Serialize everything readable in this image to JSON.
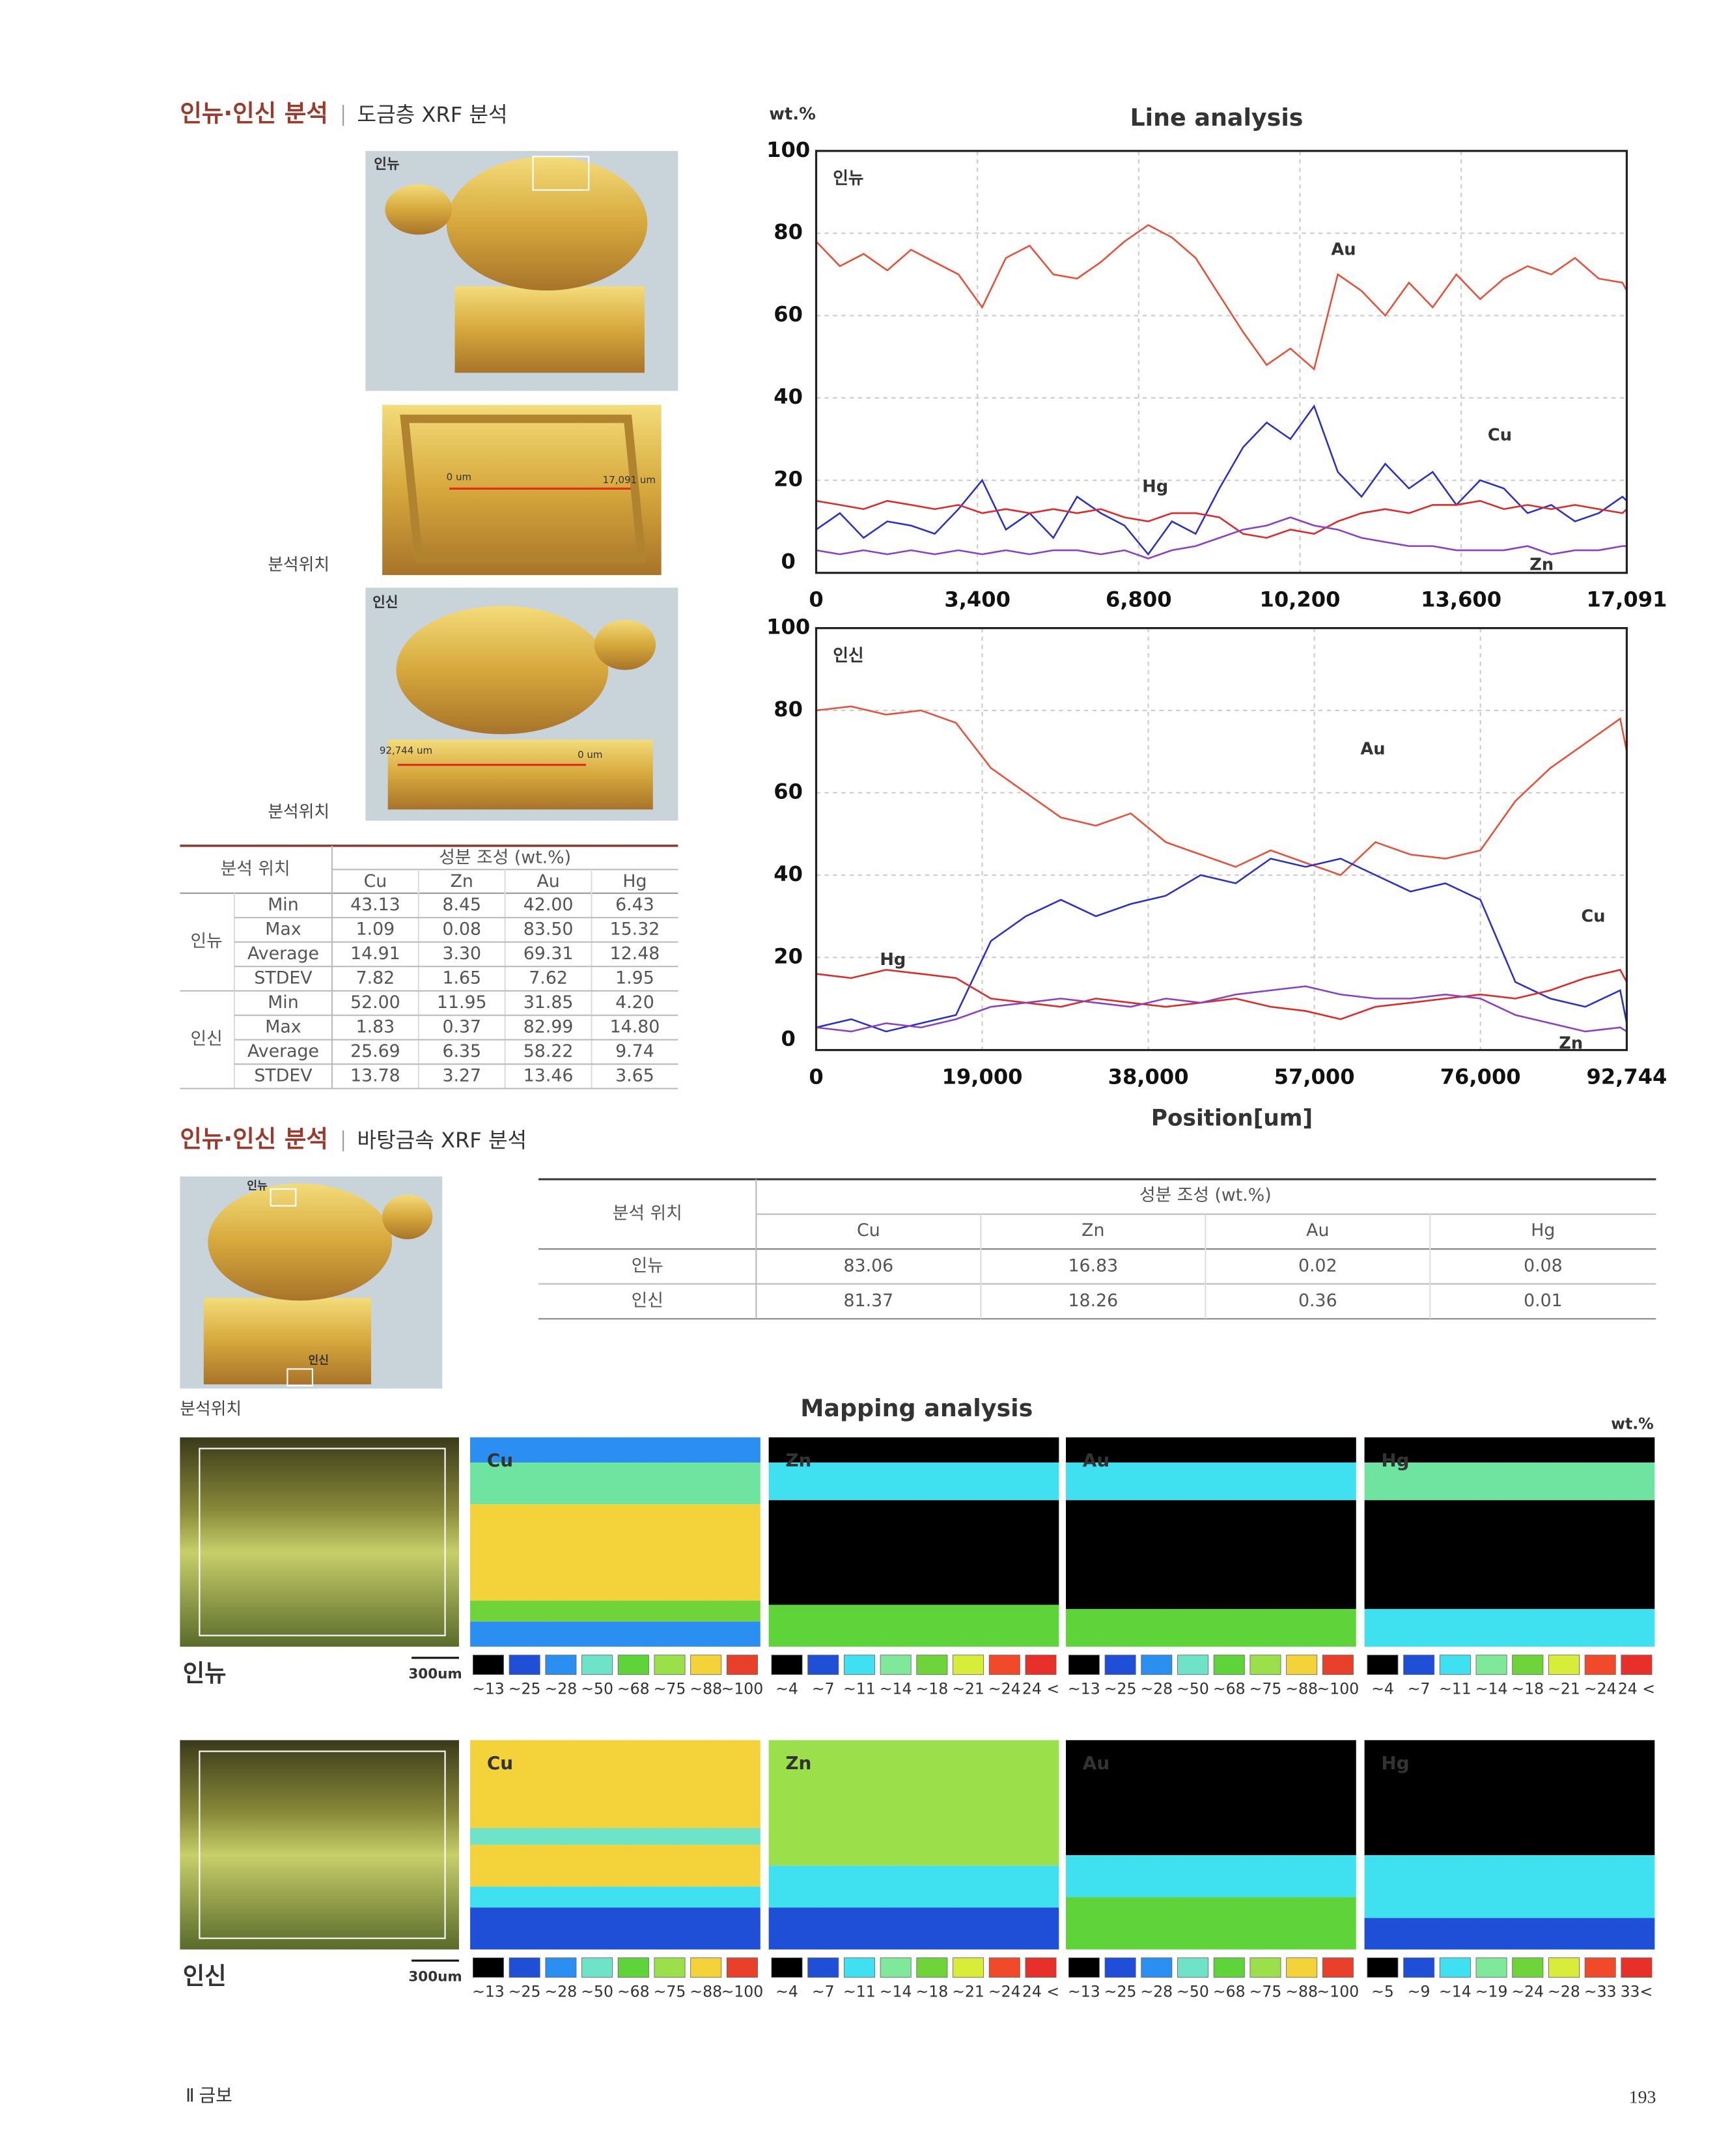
{
  "section1": {
    "title": "인뉴·인신 분석",
    "subtitle": "도금층 XRF 분석"
  },
  "photos": {
    "labels": [
      "인뉴",
      "인신"
    ],
    "scale_1": [
      "0 um",
      "17,091 um"
    ],
    "scale_2": [
      "92,744 um",
      "0 um"
    ],
    "captions": [
      "분석위치",
      "분석위치"
    ]
  },
  "chart_data": [
    {
      "type": "line",
      "title": "Line analysis",
      "y_label": "wt.%",
      "subtitle": "인뉴",
      "x": [
        0,
        500,
        1000,
        1500,
        2000,
        2500,
        3000,
        3500,
        4000,
        4500,
        5000,
        5500,
        6000,
        6500,
        7000,
        7500,
        8000,
        8500,
        9000,
        9500,
        10000,
        10500,
        11000,
        11500,
        12000,
        12500,
        13000,
        13500,
        14000,
        14500,
        15000,
        15500,
        16000,
        16500,
        17000,
        17091
      ],
      "xlim": [
        0,
        17091
      ],
      "xticks": [
        0,
        {
          "value": 3400,
          "label": "3,400"
        },
        {
          "value": 6800,
          "label": "6,800"
        },
        {
          "value": 10200,
          "label": "10,200"
        },
        {
          "value": 13600,
          "label": "13,600"
        },
        {
          "value": 17091,
          "label": "17,091"
        }
      ],
      "ylim": [
        -2.5,
        100
      ],
      "yticks": [
        0,
        20,
        40,
        60,
        80,
        100
      ],
      "grid": true,
      "series": [
        {
          "name": "Au",
          "color": "#e8503a",
          "values": [
            78,
            72,
            75,
            71,
            76,
            73,
            70,
            62,
            74,
            77,
            70,
            69,
            73,
            78,
            82,
            79,
            74,
            65,
            56,
            48,
            52,
            47,
            70,
            66,
            60,
            68,
            62,
            70,
            64,
            69,
            72,
            70,
            74,
            69,
            68,
            66
          ]
        },
        {
          "name": "Cu",
          "color": "#2b30c8",
          "values": [
            8,
            12,
            6,
            10,
            9,
            7,
            13,
            20,
            8,
            12,
            6,
            16,
            12,
            9,
            2,
            10,
            7,
            18,
            28,
            34,
            30,
            38,
            22,
            16,
            24,
            18,
            22,
            14,
            20,
            18,
            12,
            14,
            10,
            12,
            16,
            15
          ]
        },
        {
          "name": "Hg",
          "color": "#e02828",
          "values": [
            15,
            14,
            13,
            15,
            14,
            13,
            14,
            12,
            13,
            12,
            13,
            12,
            13,
            11,
            10,
            12,
            12,
            11,
            7,
            6,
            8,
            7,
            10,
            12,
            13,
            12,
            14,
            14,
            15,
            13,
            14,
            13,
            14,
            13,
            12,
            13
          ]
        },
        {
          "name": "Zn",
          "color": "#8a40c4",
          "values": [
            3,
            2,
            3,
            2,
            3,
            2,
            3,
            2,
            3,
            2,
            3,
            3,
            2,
            3,
            1,
            3,
            4,
            6,
            8,
            9,
            11,
            9,
            8,
            6,
            5,
            4,
            4,
            3,
            3,
            3,
            4,
            2,
            3,
            3,
            4,
            4
          ]
        }
      ]
    },
    {
      "type": "line",
      "subtitle": "인신",
      "x_label": "Position[um]",
      "x": [
        0,
        4000,
        8000,
        12000,
        16000,
        20000,
        24000,
        28000,
        32000,
        36000,
        40000,
        44000,
        48000,
        52000,
        56000,
        60000,
        64000,
        68000,
        72000,
        76000,
        80000,
        84000,
        88000,
        92000,
        92744
      ],
      "xlim": [
        0,
        92744
      ],
      "xticks": [
        0,
        {
          "value": 19000,
          "label": "19,000"
        },
        {
          "value": 38000,
          "label": "38,000"
        },
        {
          "value": 57000,
          "label": "57,000"
        },
        {
          "value": 76000,
          "label": "76,000"
        },
        {
          "value": 92744,
          "label": "92,744"
        }
      ],
      "ylim": [
        -2.5,
        100
      ],
      "yticks": [
        0,
        20,
        40,
        60,
        80,
        100
      ],
      "grid": true,
      "series": [
        {
          "name": "Au",
          "color": "#e8503a",
          "values": [
            80,
            81,
            79,
            80,
            77,
            66,
            60,
            54,
            52,
            55,
            48,
            45,
            42,
            46,
            43,
            40,
            48,
            45,
            44,
            46,
            58,
            66,
            72,
            78,
            70
          ]
        },
        {
          "name": "Cu",
          "color": "#2b30c8",
          "values": [
            3,
            5,
            2,
            4,
            6,
            24,
            30,
            34,
            30,
            33,
            35,
            40,
            38,
            44,
            42,
            44,
            40,
            36,
            38,
            34,
            14,
            10,
            8,
            12,
            4
          ]
        },
        {
          "name": "Hg",
          "color": "#e02828",
          "values": [
            16,
            15,
            17,
            16,
            15,
            10,
            9,
            8,
            10,
            9,
            8,
            9,
            10,
            8,
            7,
            5,
            8,
            9,
            10,
            11,
            10,
            12,
            15,
            17,
            14
          ]
        },
        {
          "name": "Zn",
          "color": "#8a40c4",
          "values": [
            3,
            2,
            4,
            3,
            5,
            8,
            9,
            10,
            9,
            8,
            10,
            9,
            11,
            12,
            13,
            11,
            10,
            10,
            11,
            10,
            6,
            4,
            2,
            3,
            2
          ]
        }
      ]
    }
  ],
  "table1": {
    "header": [
      "분석 위치",
      "성분 조성 (wt.%)"
    ],
    "columns": [
      "Cu",
      "Zn",
      "Au",
      "Hg"
    ],
    "groups": [
      {
        "name": "인뉴",
        "rows": [
          [
            "Min",
            "43.13",
            "8.45",
            "42.00",
            "6.43"
          ],
          [
            "Max",
            "1.09",
            "0.08",
            "83.50",
            "15.32"
          ],
          [
            "Average",
            "14.91",
            "3.30",
            "69.31",
            "12.48"
          ],
          [
            "STDEV",
            "7.82",
            "1.65",
            "7.62",
            "1.95"
          ]
        ]
      },
      {
        "name": "인신",
        "rows": [
          [
            "Min",
            "52.00",
            "11.95",
            "31.85",
            "4.20"
          ],
          [
            "Max",
            "1.83",
            "0.37",
            "82.99",
            "14.80"
          ],
          [
            "Average",
            "25.69",
            "6.35",
            "58.22",
            "9.74"
          ],
          [
            "STDEV",
            "13.78",
            "3.27",
            "13.46",
            "3.65"
          ]
        ]
      }
    ]
  },
  "section2": {
    "title": "인뉴·인신 분석",
    "subtitle": "바탕금속 XRF 분석",
    "photo_labels": [
      "인뉴",
      "인신"
    ],
    "caption": "분석위치"
  },
  "table2": {
    "header": [
      "분석 위치",
      "성분 조성 (wt.%)"
    ],
    "columns": [
      "Cu",
      "Zn",
      "Au",
      "Hg"
    ],
    "rows": [
      [
        "인뉴",
        "83.06",
        "16.83",
        "0.02",
        "0.08"
      ],
      [
        "인신",
        "81.37",
        "18.26",
        "0.36",
        "0.01"
      ]
    ]
  },
  "mapping": {
    "title": "Mapping analysis",
    "unit": "wt.%",
    "rows": [
      {
        "name": "인뉴",
        "scale": "300um",
        "panels": [
          {
            "element": "Cu",
            "legend": [
              "~13",
              "~25",
              "~28",
              "~50",
              "~68",
              "~75",
              "~88",
              "~100"
            ]
          },
          {
            "element": "Zn",
            "legend": [
              "~4",
              "~7",
              "~11",
              "~14",
              "~18",
              "~21",
              "~24",
              "24 <"
            ]
          },
          {
            "element": "Au",
            "legend": [
              "~13",
              "~25",
              "~28",
              "~50",
              "~68",
              "~75",
              "~88",
              "~100"
            ]
          },
          {
            "element": "Hg",
            "legend": [
              "~4",
              "~7",
              "~11",
              "~14",
              "~18",
              "~21",
              "~24",
              "24 <"
            ]
          }
        ]
      },
      {
        "name": "인신",
        "scale": "300um",
        "panels": [
          {
            "element": "Cu",
            "legend": [
              "~13",
              "~25",
              "~28",
              "~50",
              "~68",
              "~75",
              "~88",
              "~100"
            ]
          },
          {
            "element": "Zn",
            "legend": [
              "~4",
              "~7",
              "~11",
              "~14",
              "~18",
              "~21",
              "~24",
              "24 <"
            ]
          },
          {
            "element": "Au",
            "legend": [
              "~13",
              "~25",
              "~28",
              "~50",
              "~68",
              "~75",
              "~88",
              "~100"
            ]
          },
          {
            "element": "Hg",
            "legend": [
              "~5",
              "~9",
              "~14",
              "~19",
              "~24",
              "~28",
              "~33",
              "33<"
            ]
          }
        ]
      }
    ]
  },
  "footer": {
    "left": "Ⅱ 금보",
    "page": "193"
  }
}
